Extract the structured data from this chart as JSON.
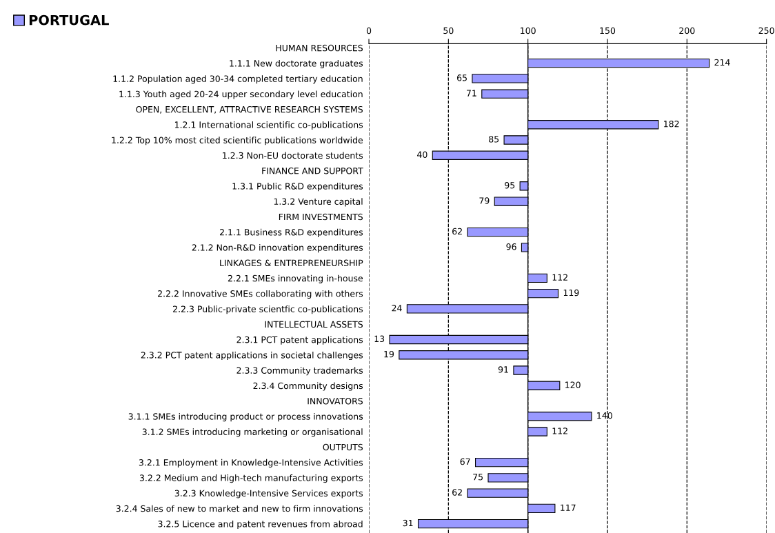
{
  "chart_data": {
    "type": "bar",
    "orientation": "horizontal",
    "categories": [
      "HUMAN RESOURCES",
      "1.1.1 New doctorate graduates",
      "1.1.2 Population aged 30-34 completed tertiary education",
      "1.1.3 Youth aged 20-24 upper secondary level education",
      "OPEN, EXCELLENT, ATTRACTIVE RESEARCH SYSTEMS",
      "1.2.1 International scientific co-publications",
      "1.2.2 Top 10% most cited scientific publications worldwide",
      "1.2.3 Non-EU doctorate students",
      "FINANCE AND SUPPORT",
      "1.3.1 Public R&D expenditures",
      "1.3.2 Venture capital",
      "FIRM INVESTMENTS",
      "2.1.1 Business R&D expenditures",
      "2.1.2 Non-R&D innovation expenditures",
      "LINKAGES & ENTREPRENEURSHIP",
      "2.2.1 SMEs innovating in-house",
      "2.2.2 Innovative SMEs collaborating with others",
      "2.2.3 Public-private scientfic co-publications",
      "INTELLECTUAL ASSETS",
      "2.3.1 PCT patent applications",
      "2.3.2 PCT patent applications in societal challenges",
      "2.3.3 Community trademarks",
      "2.3.4 Community designs",
      "INNOVATORS",
      "3.1.1 SMEs introducing product or process innovations",
      "3.1.2 SMEs introducing marketing or organisational",
      "OUTPUTS",
      "3.2.1 Employment in Knowledge-Intensive Activities",
      "3.2.2 Medium and High-tech manufacturing exports",
      "3.2.3 Knowledge-Intensive Services exports",
      "3.2.4 Sales of new to market and new to firm innovations",
      "3.2.5 Licence and patent revenues from abroad"
    ],
    "series": [
      {
        "name": "PORTUGAL",
        "color": "#9999ff",
        "base": [
          null,
          100,
          100,
          100,
          null,
          100,
          100,
          100,
          null,
          100,
          100,
          null,
          100,
          100,
          null,
          100,
          100,
          100,
          null,
          100,
          100,
          100,
          100,
          null,
          100,
          100,
          null,
          100,
          100,
          100,
          100,
          100
        ],
        "values": [
          null,
          114,
          -35,
          -29,
          null,
          82,
          -15,
          -60,
          null,
          -5,
          -21,
          null,
          -38,
          -4,
          null,
          12,
          19,
          -76,
          null,
          -87,
          -81,
          -9,
          20,
          null,
          40,
          12,
          null,
          -33,
          -25,
          -38,
          17,
          -69
        ],
        "value_labels": [
          null,
          "214",
          "65",
          "71",
          null,
          "182",
          "85",
          "40",
          null,
          "95",
          "79",
          null,
          "62",
          "96",
          null,
          "112",
          "119",
          "24",
          null,
          "13",
          "19",
          "91",
          "120",
          null,
          "140",
          "112",
          null,
          "67",
          "75",
          "62",
          "117",
          "31"
        ]
      }
    ],
    "xlim": [
      0,
      250
    ],
    "xticks": [
      0,
      50,
      100,
      150,
      200,
      250
    ],
    "grid": "x",
    "legend": "top left",
    "ref_lines": [
      {
        "axis": "x",
        "value": 100,
        "color": "#000000",
        "line_style": "solid"
      }
    ]
  }
}
